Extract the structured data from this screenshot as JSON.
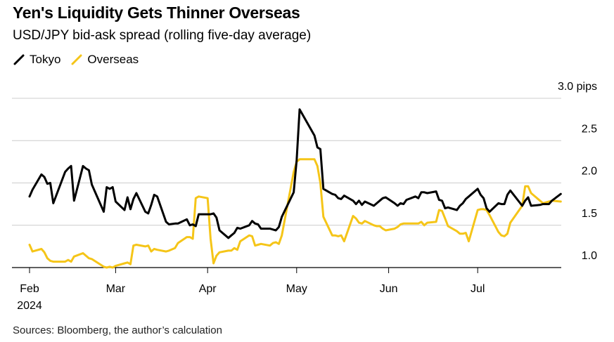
{
  "header": {
    "title": "Yen's Liquidity Gets Thinner Overseas",
    "subtitle": "USD/JPY bid-ask spread (rolling five-day average)"
  },
  "footer": {
    "source": "Sources: Bloomberg, the author’s calculation"
  },
  "colors": {
    "tokyo": "#000000",
    "overseas": "#f5c518",
    "grid": "#cccccc",
    "axis": "#000000"
  },
  "chart_data": {
    "type": "line",
    "ylim": [
      1.0,
      3.0
    ],
    "y_unit": "pips",
    "y_ticks": [
      {
        "value": 3.0,
        "label": "3.0 pips"
      },
      {
        "value": 2.5,
        "label": "2.5"
      },
      {
        "value": 2.0,
        "label": "2.0"
      },
      {
        "value": 1.5,
        "label": "1.5"
      },
      {
        "value": 1.0,
        "label": "1.0"
      }
    ],
    "x_range": [
      "2024-02-01",
      "2024-08-01"
    ],
    "x_ticks": [
      {
        "date": "2024-02-01",
        "label": "Feb",
        "sublabel": "2024"
      },
      {
        "date": "2024-03-01",
        "label": "Mar"
      },
      {
        "date": "2024-04-01",
        "label": "Apr"
      },
      {
        "date": "2024-05-01",
        "label": "May"
      },
      {
        "date": "2024-06-01",
        "label": "Jun"
      },
      {
        "date": "2024-07-01",
        "label": "Jul"
      }
    ],
    "legend_position": "top-left",
    "grid": true,
    "series": [
      {
        "name": "Tokyo",
        "x": [
          "2024-02-01",
          "2024-02-02",
          "2024-02-05",
          "2024-02-06",
          "2024-02-07",
          "2024-02-08",
          "2024-02-09",
          "2024-02-13",
          "2024-02-14",
          "2024-02-15",
          "2024-02-16",
          "2024-02-19",
          "2024-02-20",
          "2024-02-21",
          "2024-02-22",
          "2024-02-26",
          "2024-02-27",
          "2024-02-28",
          "2024-02-29",
          "2024-03-01",
          "2024-03-04",
          "2024-03-05",
          "2024-03-06",
          "2024-03-07",
          "2024-03-08",
          "2024-03-11",
          "2024-03-12",
          "2024-03-13",
          "2024-03-14",
          "2024-03-15",
          "2024-03-18",
          "2024-03-19",
          "2024-03-21",
          "2024-03-22",
          "2024-03-25",
          "2024-03-26",
          "2024-03-27",
          "2024-03-28",
          "2024-03-29",
          "2024-04-01",
          "2024-04-02",
          "2024-04-03",
          "2024-04-04",
          "2024-04-05",
          "2024-04-08",
          "2024-04-09",
          "2024-04-10",
          "2024-04-11",
          "2024-04-12",
          "2024-04-15",
          "2024-04-16",
          "2024-04-17",
          "2024-04-18",
          "2024-04-19",
          "2024-04-22",
          "2024-04-23",
          "2024-04-24",
          "2024-04-25",
          "2024-04-26",
          "2024-04-30",
          "2024-05-01",
          "2024-05-02",
          "2024-05-07",
          "2024-05-08",
          "2024-05-09",
          "2024-05-10",
          "2024-05-13",
          "2024-05-14",
          "2024-05-15",
          "2024-05-16",
          "2024-05-17",
          "2024-05-20",
          "2024-05-21",
          "2024-05-22",
          "2024-05-23",
          "2024-05-24",
          "2024-05-27",
          "2024-05-28",
          "2024-05-29",
          "2024-05-30",
          "2024-05-31",
          "2024-06-03",
          "2024-06-04",
          "2024-06-05",
          "2024-06-06",
          "2024-06-07",
          "2024-06-10",
          "2024-06-11",
          "2024-06-12",
          "2024-06-13",
          "2024-06-14",
          "2024-06-17",
          "2024-06-18",
          "2024-06-19",
          "2024-06-20",
          "2024-06-21",
          "2024-06-24",
          "2024-06-25",
          "2024-06-26",
          "2024-06-27",
          "2024-06-28",
          "2024-07-01",
          "2024-07-02",
          "2024-07-03",
          "2024-07-04",
          "2024-07-05",
          "2024-07-08",
          "2024-07-09",
          "2024-07-10",
          "2024-07-11",
          "2024-07-12",
          "2024-07-16",
          "2024-07-17",
          "2024-07-18",
          "2024-07-19",
          "2024-07-22",
          "2024-07-23",
          "2024-07-24",
          "2024-07-25",
          "2024-07-26",
          "2024-07-29"
        ],
        "values": [
          1.84,
          1.92,
          2.1,
          2.07,
          1.99,
          2.0,
          1.76,
          2.13,
          2.17,
          2.2,
          1.79,
          2.2,
          2.17,
          2.15,
          1.98,
          1.66,
          1.95,
          1.93,
          1.95,
          1.78,
          1.68,
          1.83,
          1.69,
          1.81,
          1.88,
          1.66,
          1.64,
          1.74,
          1.86,
          1.84,
          1.54,
          1.51,
          1.52,
          1.52,
          1.57,
          1.5,
          1.51,
          1.49,
          1.63,
          1.63,
          1.63,
          1.64,
          1.59,
          1.44,
          1.35,
          1.38,
          1.41,
          1.47,
          1.46,
          1.5,
          1.55,
          1.52,
          1.51,
          1.46,
          1.46,
          1.45,
          1.44,
          1.48,
          1.6,
          1.89,
          2.27,
          2.87,
          2.56,
          2.42,
          2.4,
          1.93,
          1.87,
          1.86,
          1.82,
          1.81,
          1.85,
          1.79,
          1.75,
          1.79,
          1.74,
          1.78,
          1.73,
          1.76,
          1.79,
          1.82,
          1.83,
          1.76,
          1.73,
          1.76,
          1.75,
          1.8,
          1.84,
          1.82,
          1.89,
          1.89,
          1.88,
          1.9,
          1.8,
          1.79,
          1.7,
          1.71,
          1.68,
          1.73,
          1.76,
          1.81,
          1.84,
          1.93,
          1.86,
          1.82,
          1.7,
          1.66,
          1.76,
          1.75,
          1.75,
          1.86,
          1.91,
          1.73,
          1.79,
          1.83,
          1.73,
          1.74,
          1.75,
          1.75,
          1.75,
          1.79,
          1.87
        ],
        "color": "#000000"
      },
      {
        "name": "Overseas",
        "x": [
          "2024-02-01",
          "2024-02-02",
          "2024-02-05",
          "2024-02-06",
          "2024-02-07",
          "2024-02-08",
          "2024-02-09",
          "2024-02-13",
          "2024-02-14",
          "2024-02-15",
          "2024-02-16",
          "2024-02-19",
          "2024-02-20",
          "2024-02-21",
          "2024-02-22",
          "2024-02-26",
          "2024-02-27",
          "2024-02-28",
          "2024-02-29",
          "2024-03-01",
          "2024-03-04",
          "2024-03-05",
          "2024-03-06",
          "2024-03-07",
          "2024-03-08",
          "2024-03-11",
          "2024-03-12",
          "2024-03-13",
          "2024-03-14",
          "2024-03-15",
          "2024-03-18",
          "2024-03-19",
          "2024-03-21",
          "2024-03-22",
          "2024-03-25",
          "2024-03-26",
          "2024-03-27",
          "2024-03-28",
          "2024-03-29",
          "2024-04-01",
          "2024-04-02",
          "2024-04-03",
          "2024-04-04",
          "2024-04-05",
          "2024-04-08",
          "2024-04-09",
          "2024-04-10",
          "2024-04-11",
          "2024-04-12",
          "2024-04-15",
          "2024-04-16",
          "2024-04-17",
          "2024-04-18",
          "2024-04-19",
          "2024-04-22",
          "2024-04-23",
          "2024-04-24",
          "2024-04-25",
          "2024-04-26",
          "2024-04-30",
          "2024-05-01",
          "2024-05-02",
          "2024-05-07",
          "2024-05-08",
          "2024-05-09",
          "2024-05-10",
          "2024-05-13",
          "2024-05-14",
          "2024-05-15",
          "2024-05-16",
          "2024-05-17",
          "2024-05-20",
          "2024-05-21",
          "2024-05-22",
          "2024-05-23",
          "2024-05-24",
          "2024-05-27",
          "2024-05-28",
          "2024-05-29",
          "2024-05-30",
          "2024-05-31",
          "2024-06-03",
          "2024-06-04",
          "2024-06-05",
          "2024-06-06",
          "2024-06-07",
          "2024-06-10",
          "2024-06-11",
          "2024-06-12",
          "2024-06-13",
          "2024-06-14",
          "2024-06-17",
          "2024-06-18",
          "2024-06-19",
          "2024-06-20",
          "2024-06-21",
          "2024-06-24",
          "2024-06-25",
          "2024-06-26",
          "2024-06-27",
          "2024-06-28",
          "2024-07-01",
          "2024-07-02",
          "2024-07-03",
          "2024-07-04",
          "2024-07-05",
          "2024-07-08",
          "2024-07-09",
          "2024-07-10",
          "2024-07-11",
          "2024-07-12",
          "2024-07-16",
          "2024-07-17",
          "2024-07-18",
          "2024-07-19",
          "2024-07-22",
          "2024-07-23",
          "2024-07-24",
          "2024-07-25",
          "2024-07-26",
          "2024-07-29"
        ],
        "values": [
          1.27,
          1.19,
          1.22,
          1.18,
          1.11,
          1.08,
          1.07,
          1.07,
          1.09,
          1.07,
          1.13,
          1.17,
          1.14,
          1.11,
          1.1,
          1.01,
          1.0,
          1.01,
          1.0,
          1.02,
          1.05,
          1.06,
          1.04,
          1.26,
          1.27,
          1.25,
          1.26,
          1.19,
          1.22,
          1.21,
          1.19,
          1.2,
          1.23,
          1.29,
          1.36,
          1.36,
          1.34,
          1.82,
          1.84,
          1.82,
          1.34,
          1.05,
          1.14,
          1.18,
          1.2,
          1.2,
          1.23,
          1.21,
          1.31,
          1.38,
          1.37,
          1.26,
          1.27,
          1.28,
          1.26,
          1.29,
          1.3,
          1.28,
          1.38,
          2.13,
          2.25,
          2.28,
          2.28,
          2.2,
          2.0,
          1.6,
          1.38,
          1.38,
          1.37,
          1.38,
          1.31,
          1.61,
          1.58,
          1.53,
          1.52,
          1.55,
          1.5,
          1.49,
          1.49,
          1.46,
          1.44,
          1.46,
          1.48,
          1.51,
          1.52,
          1.52,
          1.52,
          1.52,
          1.54,
          1.5,
          1.53,
          1.54,
          1.68,
          1.67,
          1.58,
          1.49,
          1.43,
          1.4,
          1.4,
          1.41,
          1.31,
          1.68,
          1.69,
          1.69,
          1.68,
          1.62,
          1.42,
          1.38,
          1.37,
          1.4,
          1.53,
          1.73,
          1.96,
          1.96,
          1.88,
          1.79,
          1.76,
          1.77,
          1.78,
          1.79,
          1.78
        ],
        "color": "#f5c518"
      }
    ]
  }
}
